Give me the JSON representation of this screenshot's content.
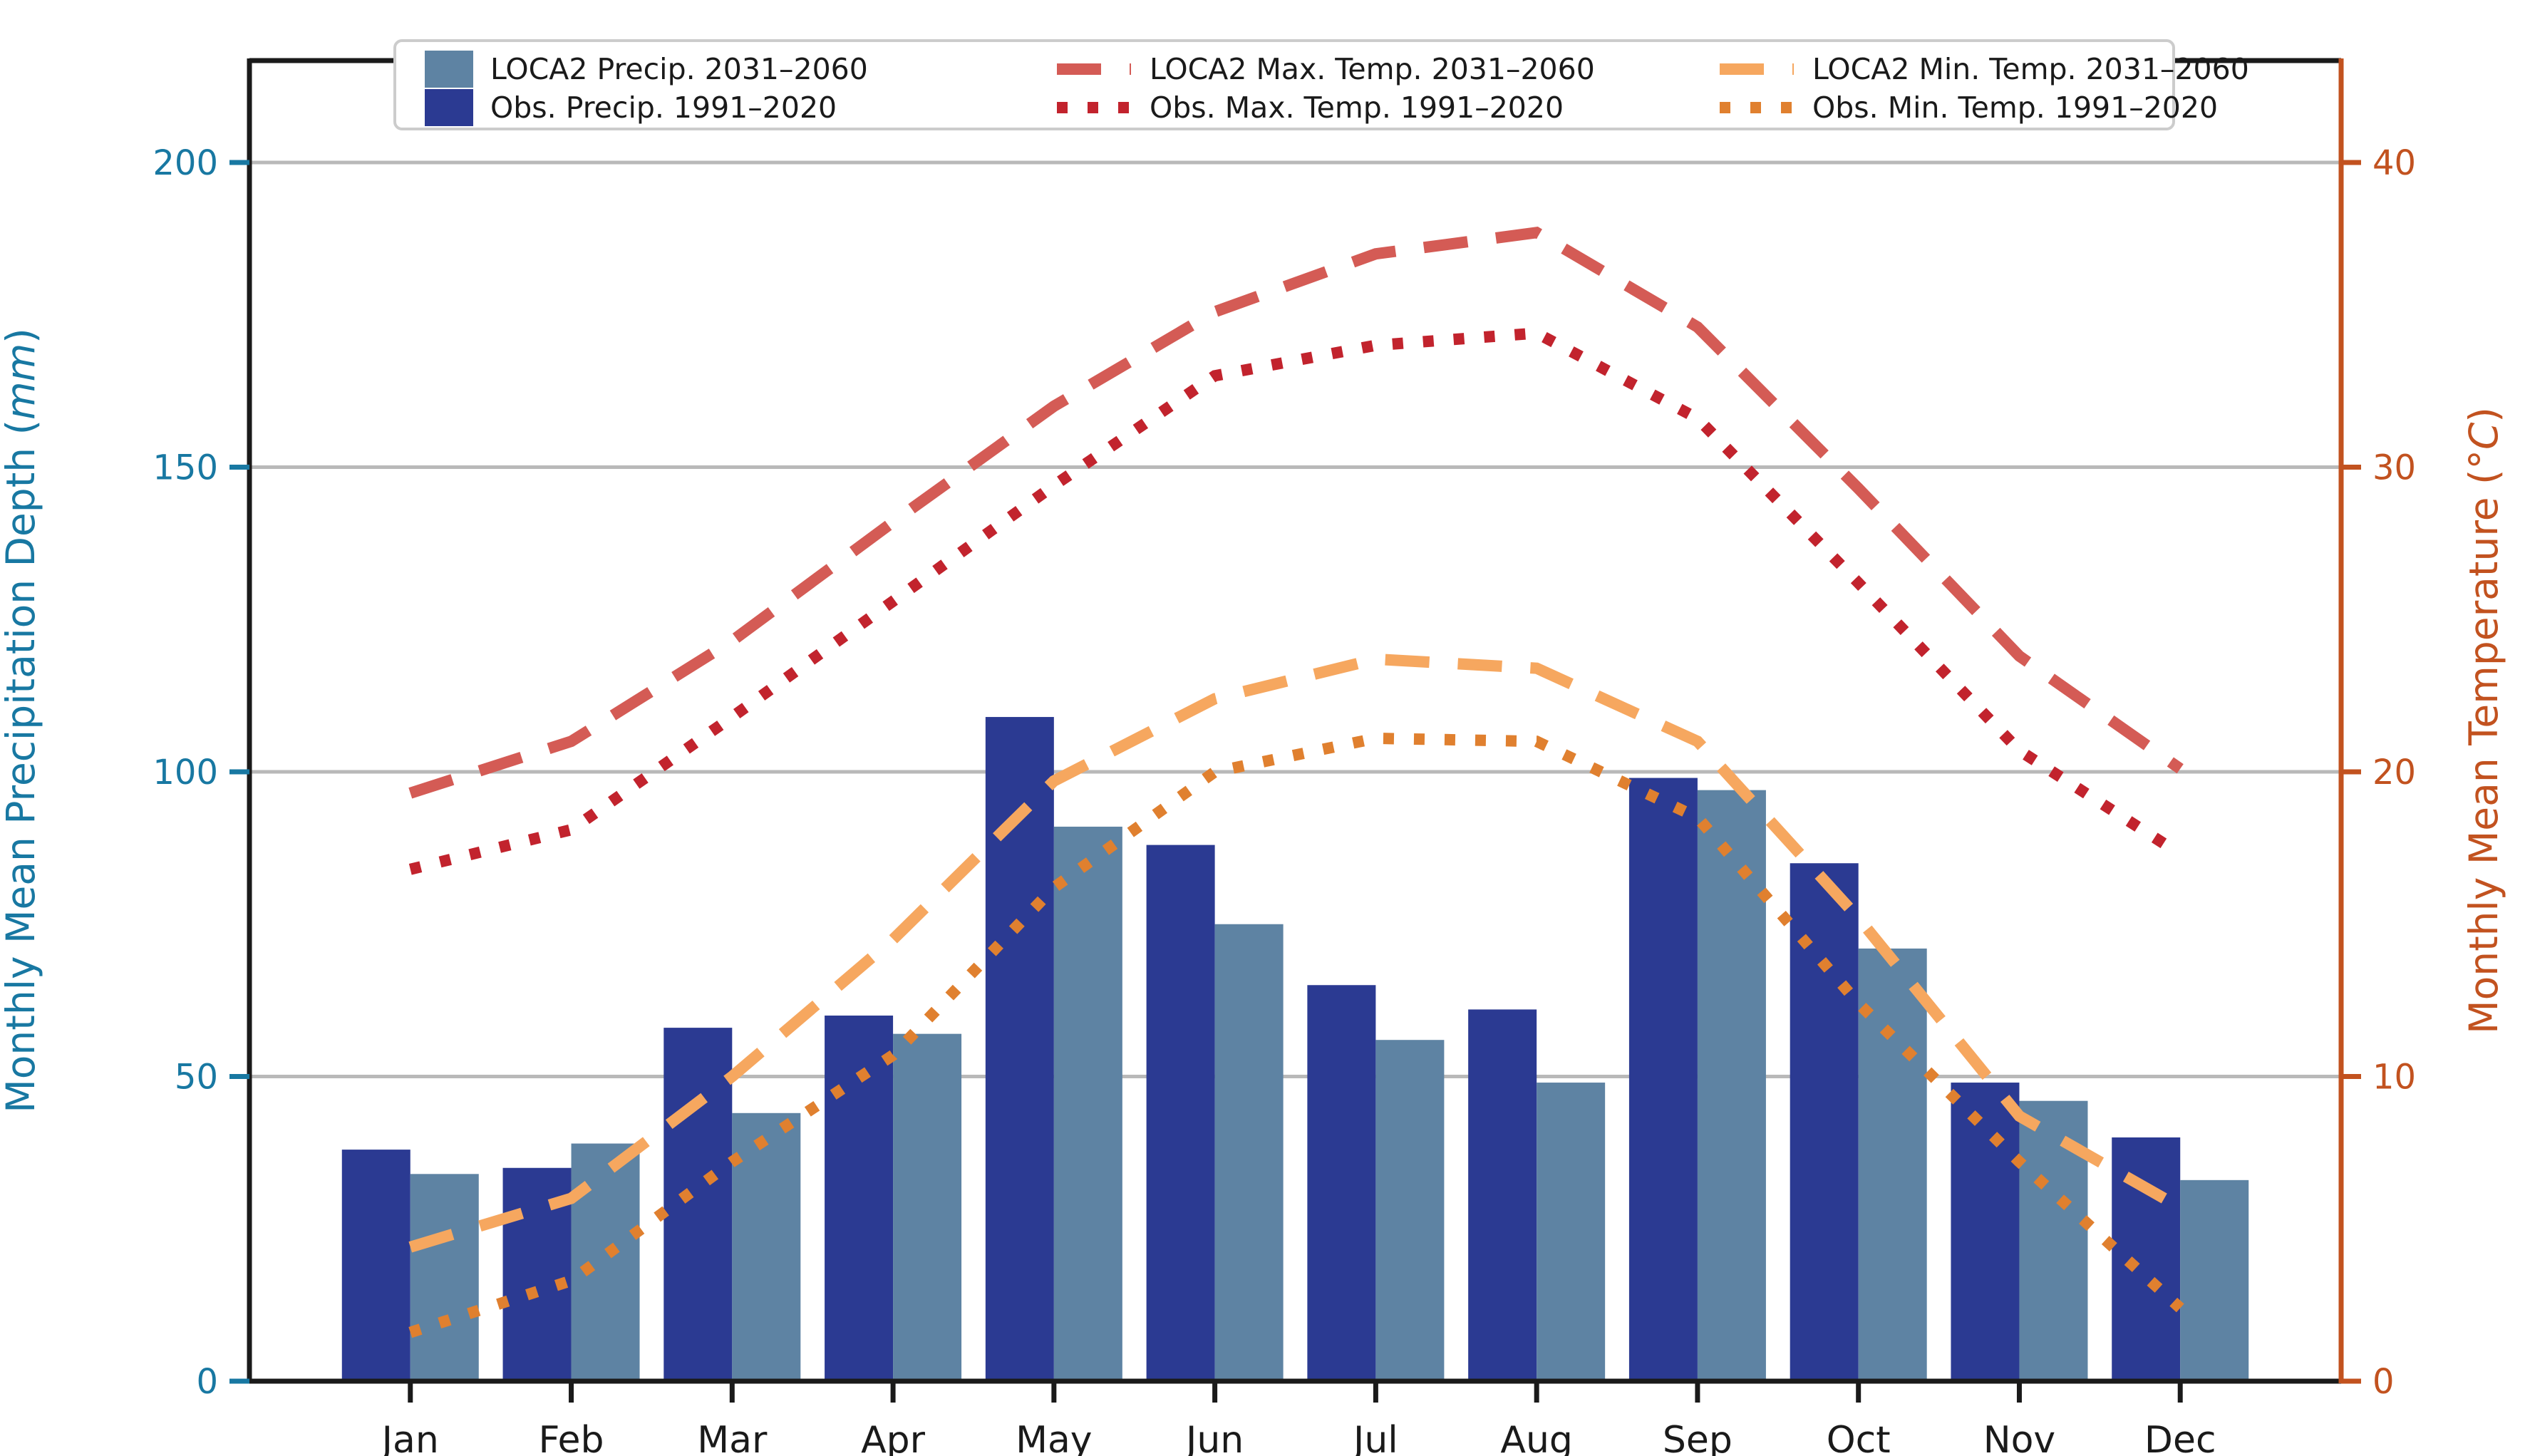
{
  "chart_data": {
    "type": "bar+line",
    "categories": [
      "Jan",
      "Feb",
      "Mar",
      "Apr",
      "May",
      "Jun",
      "Jul",
      "Aug",
      "Sep",
      "Oct",
      "Nov",
      "Dec"
    ],
    "series": [
      {
        "name": "LOCA2 Precip. 2031–2060",
        "type": "bar",
        "axis": "left",
        "color": "#5e83a3",
        "values": [
          34,
          39,
          44,
          57,
          91,
          75,
          56,
          49,
          97,
          71,
          46,
          33
        ]
      },
      {
        "name": "Obs. Precip. 1991–2020",
        "type": "bar",
        "axis": "left",
        "color": "#2b3a92",
        "values": [
          38,
          35,
          58,
          60,
          109,
          88,
          65,
          61,
          99,
          85,
          49,
          40
        ]
      },
      {
        "name": "LOCA2 Max. Temp. 2031–2060",
        "type": "line",
        "style": "dashed",
        "axis": "right",
        "color": "#d45b55",
        "values": [
          19.3,
          21.0,
          24.3,
          28.2,
          32.0,
          35.1,
          37.0,
          37.7,
          34.6,
          29.3,
          23.8,
          20.1
        ]
      },
      {
        "name": "Obs. Max. Temp. 1991–2020",
        "type": "line",
        "style": "dotted",
        "axis": "right",
        "color": "#c2232d",
        "values": [
          16.8,
          18.1,
          21.8,
          25.6,
          29.4,
          33.0,
          34.0,
          34.4,
          31.6,
          26.2,
          20.7,
          17.3
        ]
      },
      {
        "name": "LOCA2 Min. Temp. 2031–2060",
        "type": "line",
        "style": "dashed",
        "axis": "right",
        "color": "#f6a75f",
        "values": [
          4.4,
          6.0,
          10.0,
          14.5,
          19.7,
          22.4,
          23.7,
          23.4,
          21.0,
          15.2,
          8.7,
          5.7
        ]
      },
      {
        "name": "Obs. Min. Temp. 1991–2020",
        "type": "line",
        "style": "dotted",
        "axis": "right",
        "color": "#e0802f",
        "values": [
          1.6,
          3.3,
          7.2,
          10.7,
          16.2,
          20.0,
          21.1,
          21.0,
          18.5,
          12.4,
          7.2,
          2.4
        ]
      }
    ],
    "axes": {
      "left": {
        "title_prefix": "Monthly Mean Precipitation Depth (",
        "title_italic": "mm",
        "title_suffix": ")",
        "color": "#1878a2",
        "ticks": [
          0,
          50,
          100,
          150,
          200
        ],
        "lim": [
          0,
          216.8
        ]
      },
      "right": {
        "title_prefix": "Monthly Mean Temperature (",
        "title_italic": "°C",
        "title_suffix": ")",
        "color": "#c2521f",
        "ticks": [
          0,
          10,
          20,
          30,
          40
        ],
        "lim": [
          0,
          43.4
        ]
      },
      "bottom": {
        "color": "#1a1a1a"
      }
    },
    "grid": true,
    "legend_position": "upper center",
    "legend_columns": [
      [
        0,
        1
      ],
      [
        2,
        3
      ],
      [
        4,
        5
      ]
    ],
    "colors": {
      "grid": "#b9b9b9",
      "spine": "#1a1a1a",
      "background": "#ffffff"
    }
  }
}
